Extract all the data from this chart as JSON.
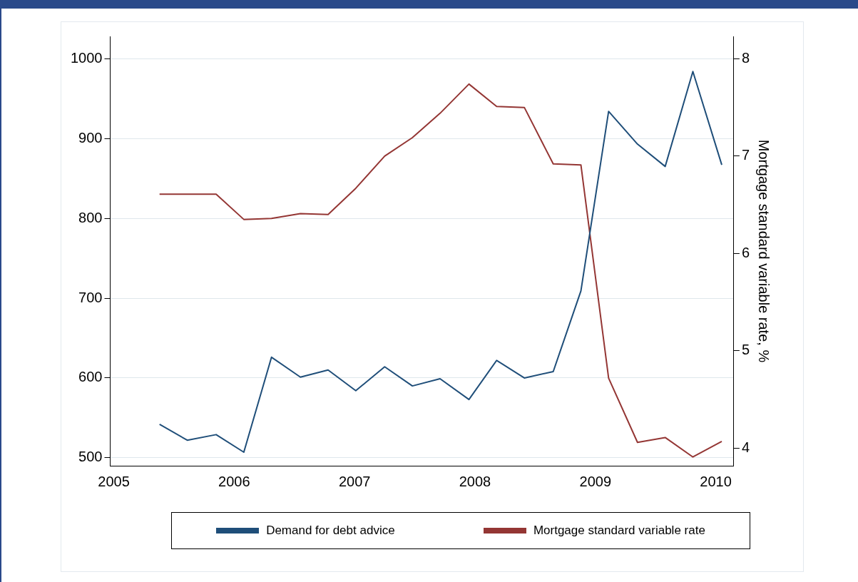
{
  "chart_data": {
    "type": "line",
    "x": [
      2005.38,
      2005.61,
      2005.85,
      2006.08,
      2006.31,
      2006.55,
      2006.78,
      2007.01,
      2007.25,
      2007.48,
      2007.71,
      2007.95,
      2008.18,
      2008.41,
      2008.65,
      2008.88,
      2009.11,
      2009.35,
      2009.58,
      2009.81,
      2010.05
    ],
    "series": [
      {
        "name": "Demand for debt advice",
        "color": "#1f4e79",
        "values": [
          542,
          522,
          529,
          507,
          626,
          601,
          610,
          584,
          614,
          590,
          599,
          573,
          622,
          600,
          608,
          709,
          934,
          893,
          865,
          984,
          867
        ]
      },
      {
        "name": "Mortgage standard variable rate",
        "color": "#943634",
        "axis": "y2",
        "values": [
          6.61,
          6.61,
          6.61,
          6.35,
          6.36,
          6.41,
          6.4,
          6.67,
          7.0,
          7.19,
          7.44,
          7.74,
          7.51,
          7.5,
          6.92,
          6.91,
          4.72,
          4.06,
          4.11,
          3.91,
          4.07
        ]
      }
    ],
    "y2label": "Mortgage standard variable rate, %",
    "xlim": [
      2004.97,
      2010.15
    ],
    "xticks": [
      2005,
      2006,
      2007,
      2008,
      2009,
      2010
    ],
    "ylim": [
      490,
      1028
    ],
    "yticks": [
      500,
      600,
      700,
      800,
      900,
      1000
    ],
    "y2lim": [
      3.82,
      8.23
    ],
    "y2ticks": [
      4,
      5,
      6,
      7,
      8
    ],
    "grid": "y",
    "legend": "bottom",
    "marker": "none",
    "line_style": "solid"
  }
}
